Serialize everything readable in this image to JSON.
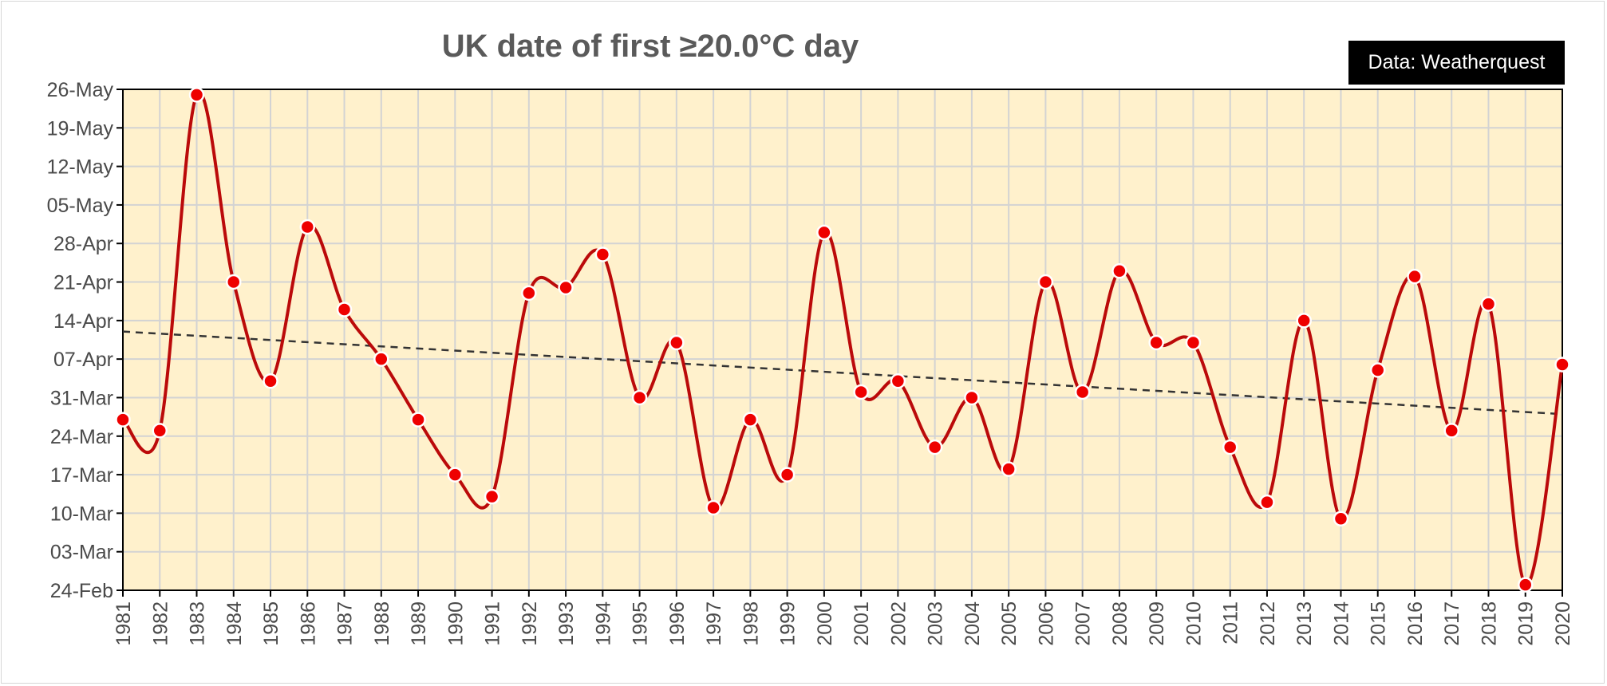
{
  "title": "UK date of first ≥20.0°C day",
  "credit": "Data: Weatherquest",
  "colors": {
    "background": "#ffffff",
    "plot_background": "#fff1cc",
    "grid": "#d3d3d3",
    "line": "#bb0a0a",
    "marker_fill": "#ee0000",
    "marker_stroke": "#ffffff",
    "trend": "#333333",
    "title": "#5a5a5a",
    "tick_text": "#4a4a4a"
  },
  "chart_data": {
    "type": "line",
    "title": "UK date of first ≥20.0°C day",
    "xlabel": "",
    "ylabel": "",
    "x": [
      1981,
      1982,
      1983,
      1984,
      1985,
      1986,
      1987,
      1988,
      1989,
      1990,
      1991,
      1992,
      1993,
      1994,
      1995,
      1996,
      1997,
      1998,
      1999,
      2000,
      2001,
      2002,
      2003,
      2004,
      2005,
      2006,
      2007,
      2008,
      2009,
      2010,
      2011,
      2012,
      2013,
      2014,
      2015,
      2016,
      2017,
      2018,
      2019,
      2020
    ],
    "series": [
      {
        "values": [
          "27-Mar",
          "25-Mar",
          "25-May",
          "21-Apr",
          "03-Apr",
          "01-May",
          "16-Apr",
          "07-Apr",
          "27-Mar",
          "17-Mar",
          "13-Mar",
          "19-Apr",
          "20-Apr",
          "26-Apr",
          "31-Mar",
          "10-Apr",
          "11-Mar",
          "27-Mar",
          "17-Mar",
          "30-Apr",
          "01-Apr",
          "03-Apr",
          "22-Mar",
          "31-Mar",
          "18-Mar",
          "21-Apr",
          "01-Apr",
          "23-Apr",
          "10-Apr",
          "10-Apr",
          "22-Mar",
          "12-Mar",
          "14-Apr",
          "09-Mar",
          "05-Apr",
          "22-Apr",
          "25-Mar",
          "17-Apr",
          "25-Feb",
          "06-Apr"
        ]
      }
    ],
    "trend": {
      "style": "dashed",
      "start": "12-Apr",
      "end": "28-Mar"
    },
    "x_ticks": [
      "1981",
      "1982",
      "1983",
      "1984",
      "1985",
      "1986",
      "1987",
      "1988",
      "1989",
      "1990",
      "1991",
      "1992",
      "1993",
      "1994",
      "1995",
      "1996",
      "1997",
      "1998",
      "1999",
      "2000",
      "2001",
      "2002",
      "2003",
      "2004",
      "2005",
      "2006",
      "2007",
      "2008",
      "2009",
      "2010",
      "2011",
      "2012",
      "2013",
      "2014",
      "2015",
      "2016",
      "2017",
      "2018",
      "2019",
      "2020"
    ],
    "y_ticks": [
      "24-Feb",
      "03-Mar",
      "10-Mar",
      "17-Mar",
      "24-Mar",
      "31-Mar",
      "07-Apr",
      "14-Apr",
      "21-Apr",
      "28-Apr",
      "05-May",
      "12-May",
      "19-May",
      "26-May"
    ],
    "ylim": [
      "24-Feb",
      "26-May"
    ],
    "xlim": [
      1981,
      2020
    ],
    "grid": true,
    "legend": "none"
  }
}
